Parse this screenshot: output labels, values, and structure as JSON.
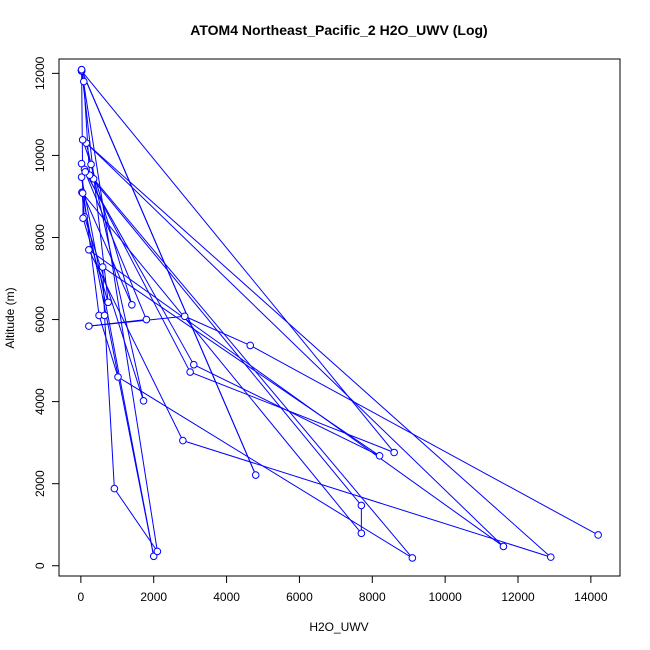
{
  "chart_data": {
    "type": "line",
    "title": "ATOM4 Northeast_Pacific_2 H2O_UWV (Log)",
    "xlabel": "H2O_UWV",
    "ylabel": "Altitude (m)",
    "xlim": [
      -600,
      14800
    ],
    "ylim": [
      -250,
      12350
    ],
    "x_ticks": [
      0,
      2000,
      4000,
      6000,
      8000,
      10000,
      12000,
      14000
    ],
    "y_ticks": [
      0,
      2000,
      4000,
      6000,
      8000,
      10000,
      12000
    ],
    "x_tick_labels": [
      "0",
      "2000",
      "4000",
      "6000",
      "8000",
      "10000",
      "12000",
      "14000"
    ],
    "y_tick_labels": [
      "0",
      "2000",
      "4000",
      "6000",
      "8000",
      "10000",
      "12000"
    ],
    "grid": false,
    "color": "#0000ff",
    "series": [
      {
        "x": [
          14200,
          4650,
          2850,
          220,
          1800,
          20,
          350,
          9100,
          1020,
          500,
          20,
          2000,
          30,
          100,
          1720,
          150,
          11600,
          220,
          2800,
          12900,
          50,
          280,
          1400,
          50,
          7700,
          7700,
          100,
          3000,
          8600,
          20,
          80,
          240,
          120,
          3100,
          8200,
          600,
          650,
          920,
          2100,
          20,
          60,
          750,
          20,
          4800,
          20,
          20,
          20
        ],
        "y": [
          750,
          5370,
          6080,
          5840,
          6000,
          9800,
          9430,
          190,
          4600,
          6100,
          9470,
          230,
          9100,
          8500,
          4020,
          10300,
          470,
          7700,
          3050,
          210,
          10380,
          9780,
          6360,
          9080,
          790,
          1470,
          9660,
          4720,
          2760,
          12060,
          11800,
          9520,
          9600,
          4900,
          2680,
          7280,
          6100,
          1880,
          350,
          12090,
          8470,
          6420,
          12080,
          2210,
          12070,
          12060,
          12090
        ]
      }
    ]
  }
}
